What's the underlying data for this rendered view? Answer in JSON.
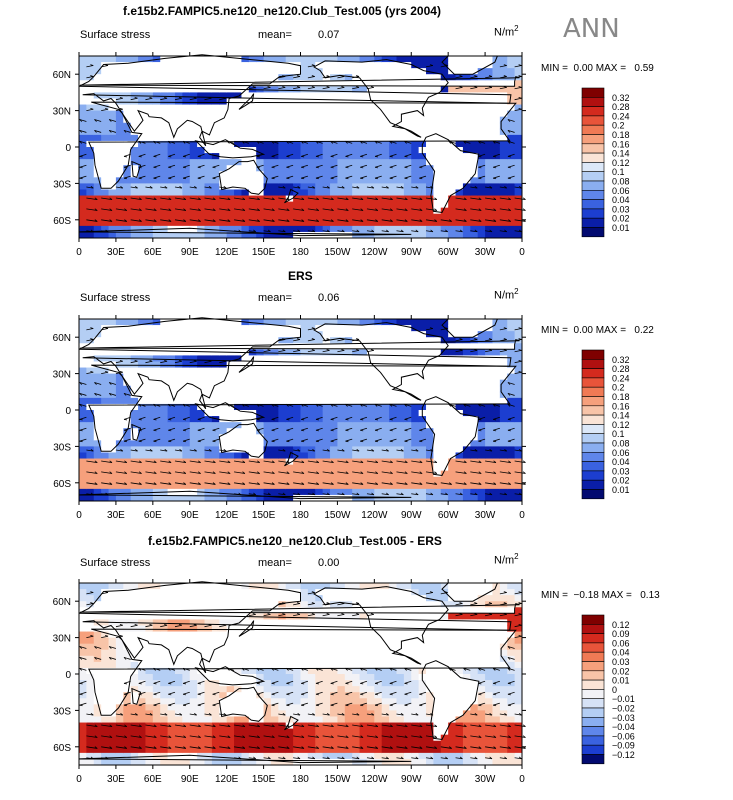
{
  "ann_label": "ANN",
  "panels": [
    {
      "id": "model",
      "title": "f.e15b2.FAMPIC5.ne120_ne120.Club_Test.005 (yrs 2004)",
      "variable": "Surface stress",
      "mean_label": "mean=",
      "mean_value": "0.07",
      "units_base": "N/m",
      "units_exp": "2",
      "min_label": "MIN =",
      "min_value": "0.00",
      "max_label": "MAX =",
      "max_value": "0.59",
      "colorbar_labels": [
        "0.32",
        "0.28",
        "0.24",
        "0.2",
        "0.18",
        "0.16",
        "0.14",
        "0.12",
        "0.1",
        "0.08",
        "0.06",
        "0.04",
        "0.03",
        "0.02",
        "0.01"
      ]
    },
    {
      "id": "obs",
      "title": "ERS",
      "variable": "Surface stress",
      "mean_label": "mean=",
      "mean_value": "0.06",
      "units_base": "N/m",
      "units_exp": "2",
      "min_label": "MIN =",
      "min_value": "0.00",
      "max_label": "MAX =",
      "max_value": "0.22",
      "colorbar_labels": [
        "0.32",
        "0.28",
        "0.24",
        "0.2",
        "0.18",
        "0.16",
        "0.14",
        "0.12",
        "0.1",
        "0.08",
        "0.06",
        "0.04",
        "0.03",
        "0.02",
        "0.01"
      ]
    },
    {
      "id": "diff",
      "title": "f.e15b2.FAMPIC5.ne120_ne120.Club_Test.005 - ERS",
      "variable": "Surface stress",
      "mean_label": "mean=",
      "mean_value": "0.00",
      "units_base": "N/m",
      "units_exp": "2",
      "min_label": "MIN =",
      "min_value": "−0.18",
      "max_label": "MAX =",
      "max_value": "0.13",
      "colorbar_labels": [
        "0.12",
        "0.09",
        "0.06",
        "0.04",
        "0.03",
        "0.02",
        "0.01",
        "0",
        "−0.01",
        "−0.02",
        "−0.03",
        "−0.04",
        "−0.06",
        "−0.09",
        "−0.12"
      ]
    }
  ],
  "x_tick_labels": [
    "0",
    "30E",
    "60E",
    "90E",
    "120E",
    "150E",
    "180",
    "150W",
    "120W",
    "90W",
    "60W",
    "30W",
    "0"
  ],
  "y_tick_labels": [
    "60N",
    "30N",
    "0",
    "30S",
    "60S"
  ],
  "colors": {
    "abs_scale": [
      "#7f0000",
      "#b01010",
      "#d42a1e",
      "#e8543a",
      "#f07a55",
      "#f6a07c",
      "#f8c4a8",
      "#fae4d6",
      "#dce8f8",
      "#b4cef4",
      "#8aaef0",
      "#5f86ea",
      "#3a62e0",
      "#1c3ed0",
      "#0a1ea8",
      "#020a70"
    ],
    "diff_scale": [
      "#7f0000",
      "#b01010",
      "#d42a1e",
      "#e8543a",
      "#f07a55",
      "#f6a07c",
      "#f8c4a8",
      "#fae4d6",
      "#f2f2f6",
      "#d6e2f6",
      "#b4cef4",
      "#8aaef0",
      "#5f86ea",
      "#3a62e0",
      "#1c3ed0",
      "#020a70"
    ],
    "land": "#ffffff",
    "coast": "#000000"
  }
}
